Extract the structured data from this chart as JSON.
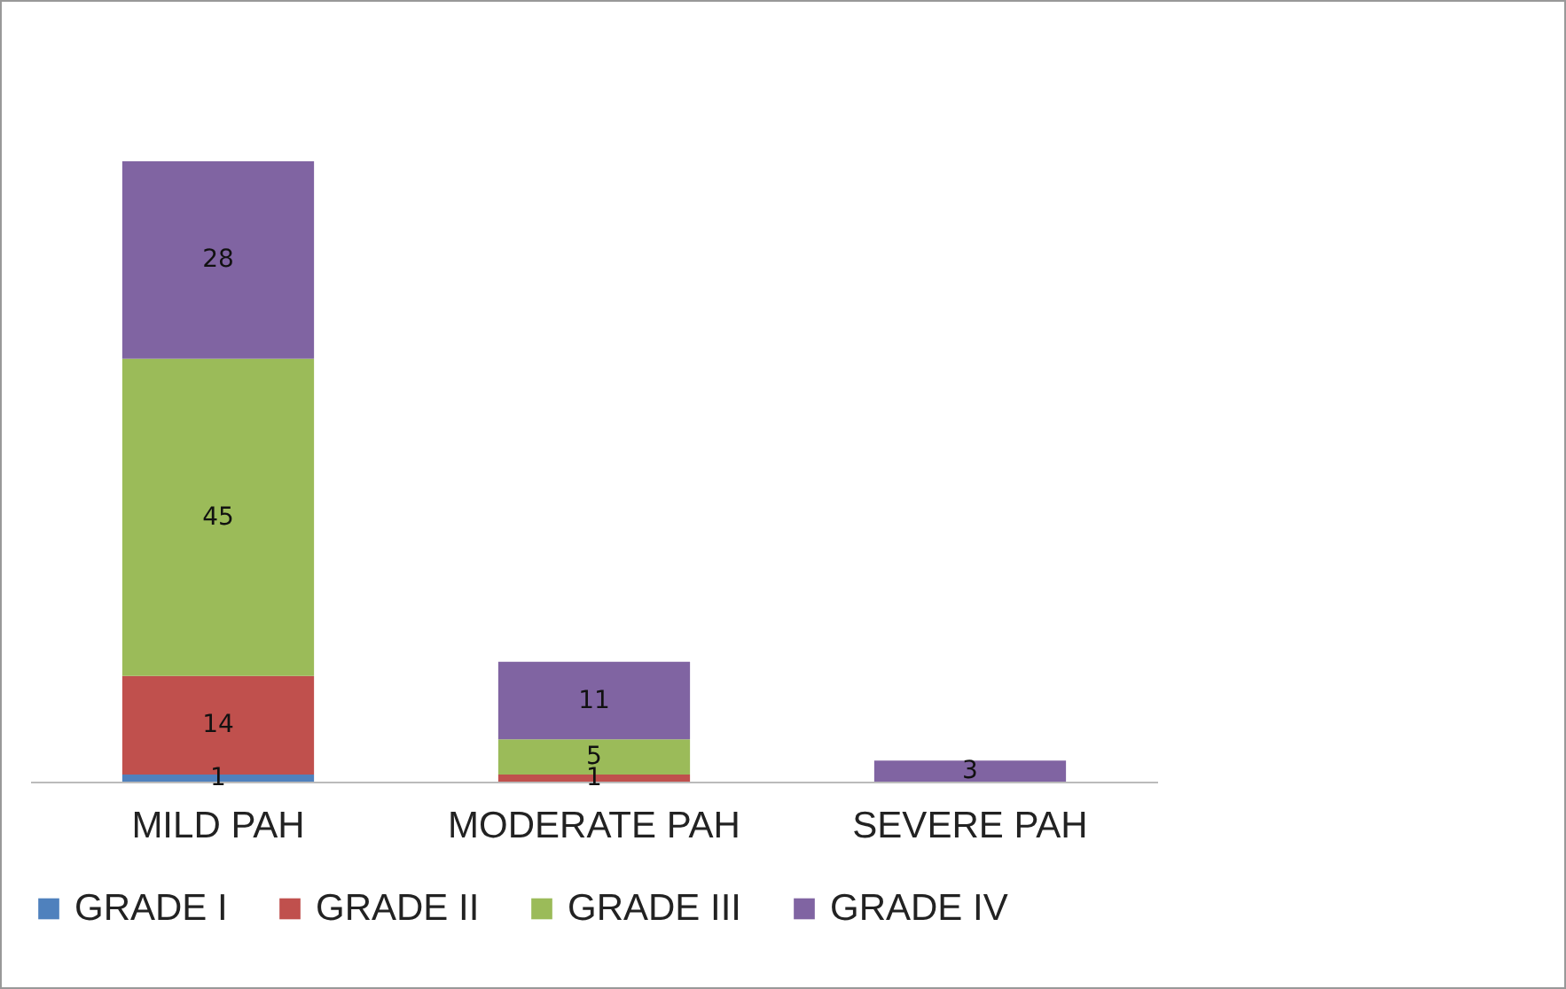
{
  "chart_data": {
    "type": "bar",
    "stacked": true,
    "data_labels": true,
    "legend": "bottom",
    "grid": false,
    "categories": [
      "MILD PAH",
      "MODERATE PAH",
      "SEVERE PAH"
    ],
    "series": [
      {
        "name": "GRADE I",
        "color": "#4f81bd",
        "values": [
          1,
          null,
          null
        ]
      },
      {
        "name": "GRADE II",
        "color": "#c0504d",
        "values": [
          14,
          1,
          null
        ]
      },
      {
        "name": "GRADE III",
        "color": "#9bbb59",
        "values": [
          45,
          5,
          null
        ]
      },
      {
        "name": "GRADE IV",
        "color": "#8064a2",
        "values": [
          28,
          11,
          3
        ]
      }
    ]
  }
}
